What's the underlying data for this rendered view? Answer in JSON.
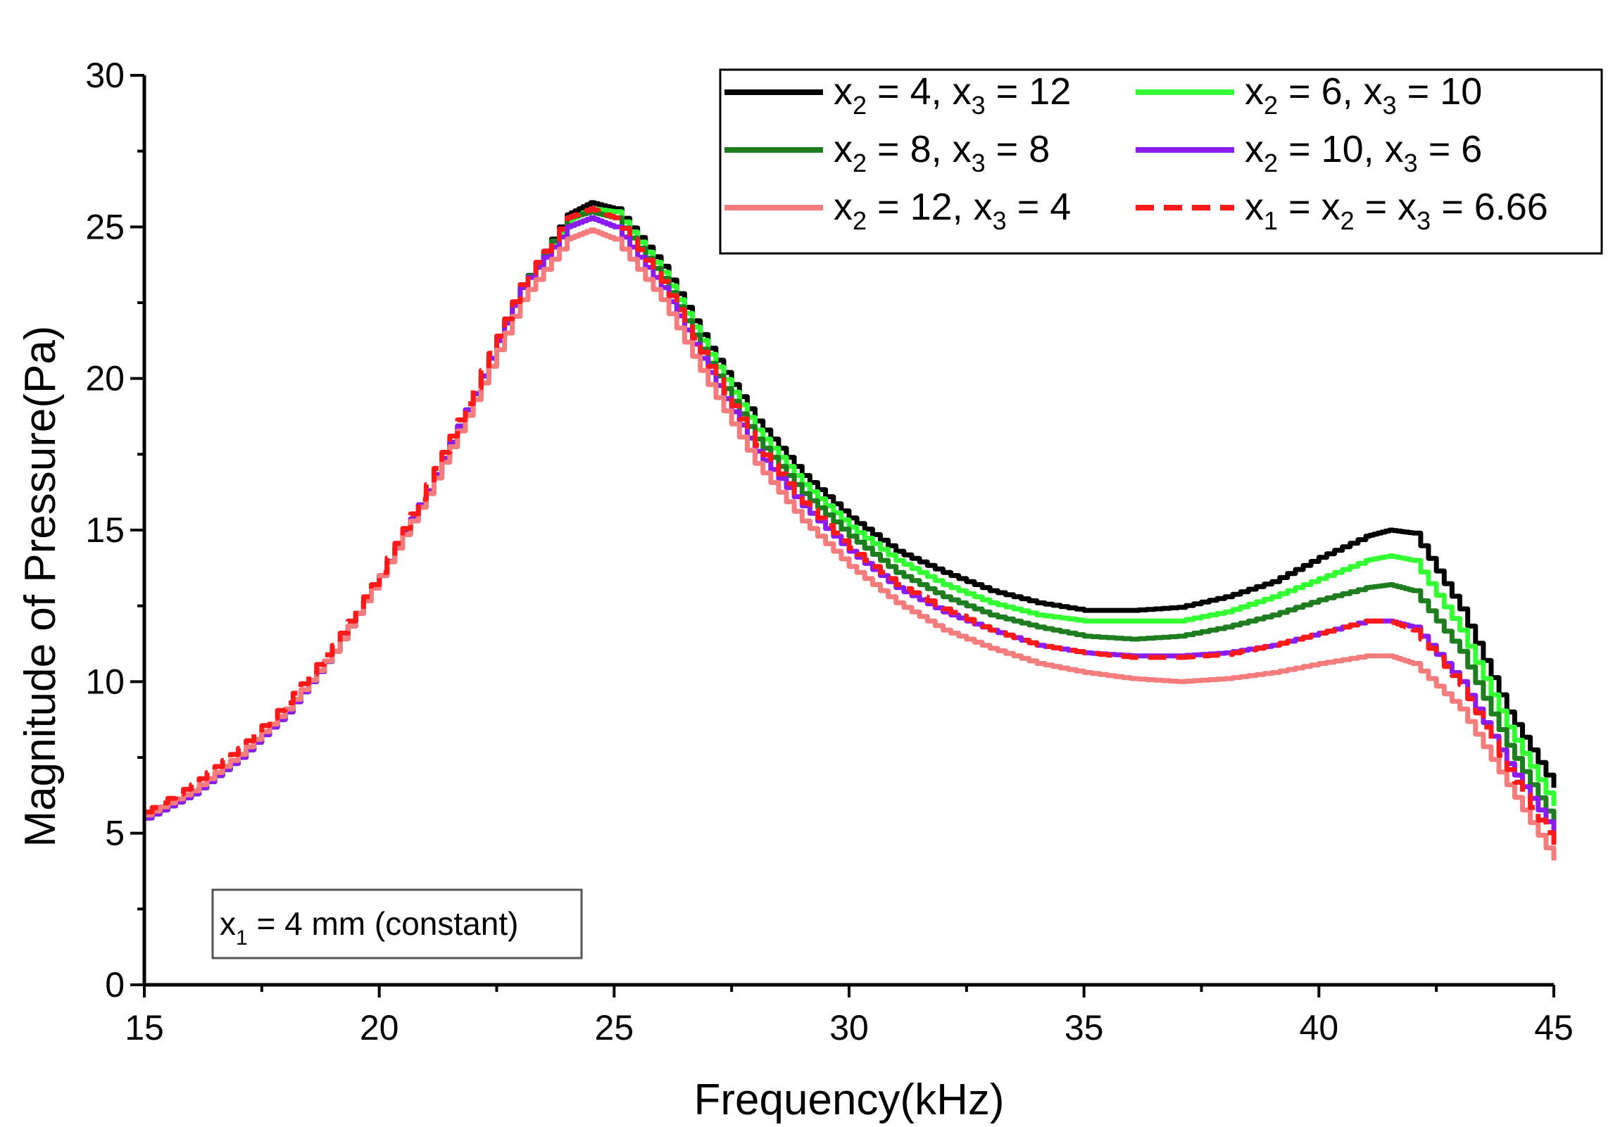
{
  "chart_data": {
    "type": "line",
    "xlabel": "Frequency(kHz)",
    "ylabel": "Magnitude of Pressure(Pa)",
    "xlim": [
      15,
      45
    ],
    "ylim": [
      0,
      30
    ],
    "xticks": [
      15,
      20,
      25,
      30,
      35,
      40,
      45
    ],
    "yticks": [
      0,
      5,
      10,
      15,
      20,
      25,
      30
    ],
    "legend_position": "top-right",
    "annotation": {
      "prefix": "x",
      "sub": "1",
      "text": " = 4 mm (constant)"
    },
    "series": [
      {
        "name": "x2 = 4, x3 = 12",
        "label": [
          {
            "t": "x"
          },
          {
            "s": "2"
          },
          {
            "t": " = 4, x"
          },
          {
            "s": "3"
          },
          {
            "t": " = 12"
          }
        ],
        "color": "#000000",
        "dashed": false,
        "x": [
          15,
          16,
          17,
          18,
          19,
          20,
          21,
          22,
          23,
          24,
          24.5,
          25,
          26,
          27,
          28,
          29,
          30,
          31,
          32,
          33,
          34,
          35,
          36,
          37,
          38,
          39,
          40,
          41,
          41.5,
          42,
          43,
          44,
          45
        ],
        "y": [
          5.5,
          6.3,
          7.5,
          9.0,
          11.0,
          13.5,
          16.3,
          19.5,
          23.0,
          25.4,
          25.8,
          25.6,
          23.7,
          21.0,
          18.6,
          16.8,
          15.4,
          14.3,
          13.6,
          13.0,
          12.6,
          12.35,
          12.35,
          12.45,
          12.8,
          13.3,
          14.1,
          14.8,
          15.0,
          14.9,
          12.4,
          9.0,
          6.5
        ]
      },
      {
        "name": "x2 = 6, x3 = 10",
        "label": [
          {
            "t": "x"
          },
          {
            "s": "2"
          },
          {
            "t": " = 6, x"
          },
          {
            "s": "3"
          },
          {
            "t": " = 10"
          }
        ],
        "color": "#33ff33",
        "dashed": false,
        "x": [
          15,
          16,
          17,
          18,
          19,
          20,
          21,
          22,
          23,
          24,
          24.5,
          25,
          26,
          27,
          28,
          29,
          30,
          31,
          32,
          33,
          34,
          35,
          36,
          37,
          38,
          39,
          40,
          41,
          41.5,
          42,
          43,
          44,
          45
        ],
        "y": [
          5.5,
          6.3,
          7.5,
          9.0,
          11.0,
          13.5,
          16.3,
          19.5,
          23.0,
          25.2,
          25.6,
          25.5,
          23.5,
          20.8,
          18.3,
          16.5,
          15.1,
          14.0,
          13.2,
          12.6,
          12.2,
          12.0,
          12.0,
          12.0,
          12.3,
          12.8,
          13.4,
          14.0,
          14.15,
          14.0,
          11.7,
          8.5,
          5.9
        ]
      },
      {
        "name": "x2 = 8, x3 = 8",
        "label": [
          {
            "t": "x"
          },
          {
            "s": "2"
          },
          {
            "t": " = 8, x"
          },
          {
            "s": "3"
          },
          {
            "t": " = 8"
          }
        ],
        "color": "#1e7d1e",
        "dashed": false,
        "x": [
          15,
          16,
          17,
          18,
          19,
          20,
          21,
          22,
          23,
          24,
          24.5,
          25,
          26,
          27,
          28,
          29,
          30,
          31,
          32,
          33,
          34,
          35,
          36,
          37,
          38,
          39,
          40,
          41,
          41.5,
          42,
          43,
          44,
          45
        ],
        "y": [
          5.5,
          6.3,
          7.5,
          9.0,
          11.0,
          13.5,
          16.3,
          19.5,
          23.0,
          25.3,
          25.5,
          25.3,
          23.3,
          20.5,
          18.0,
          16.2,
          14.8,
          13.6,
          12.8,
          12.2,
          11.8,
          11.5,
          11.4,
          11.5,
          11.8,
          12.2,
          12.7,
          13.1,
          13.2,
          13.0,
          11.0,
          7.9,
          5.3
        ]
      },
      {
        "name": "x2 = 10, x3 = 6",
        "label": [
          {
            "t": "x"
          },
          {
            "s": "2"
          },
          {
            "t": " = 10, x"
          },
          {
            "s": "3"
          },
          {
            "t": " = 6"
          }
        ],
        "color": "#8a1cf0",
        "dashed": false,
        "x": [
          15,
          16,
          17,
          18,
          19,
          20,
          21,
          22,
          23,
          24,
          24.5,
          25,
          26,
          27,
          28,
          29,
          30,
          31,
          32,
          33,
          34,
          35,
          36,
          37,
          38,
          39,
          40,
          41,
          41.5,
          42,
          43,
          44,
          45
        ],
        "y": [
          5.5,
          6.3,
          7.5,
          9.0,
          11.0,
          13.5,
          16.3,
          19.5,
          23.0,
          25.0,
          25.3,
          25.0,
          23.0,
          20.2,
          17.6,
          15.8,
          14.3,
          13.1,
          12.3,
          11.7,
          11.2,
          10.95,
          10.85,
          10.85,
          10.95,
          11.2,
          11.6,
          12.0,
          12.0,
          11.8,
          10.0,
          7.3,
          5.0
        ]
      },
      {
        "name": "x2 = 12, x3 = 4",
        "label": [
          {
            "t": "x"
          },
          {
            "s": "2"
          },
          {
            "t": " = 12, x"
          },
          {
            "s": "3"
          },
          {
            "t": " = 4"
          }
        ],
        "color": "#f47c7c",
        "dashed": false,
        "x": [
          15,
          16,
          17,
          18,
          19,
          20,
          21,
          22,
          23,
          24,
          24.5,
          25,
          26,
          27,
          28,
          29,
          30,
          31,
          32,
          33,
          34,
          35,
          36,
          37,
          38,
          39,
          40,
          41,
          41.5,
          42,
          43,
          44,
          45
        ],
        "y": [
          5.6,
          6.4,
          7.6,
          9.1,
          11.0,
          13.5,
          16.2,
          19.3,
          22.6,
          24.6,
          24.9,
          24.6,
          22.6,
          19.8,
          17.2,
          15.3,
          13.8,
          12.6,
          11.7,
          11.1,
          10.6,
          10.3,
          10.1,
          10.0,
          10.1,
          10.3,
          10.6,
          10.85,
          10.85,
          10.6,
          9.1,
          6.6,
          4.1
        ]
      },
      {
        "name": "x1 = x2 = x3 = 6.66",
        "label": [
          {
            "t": "x"
          },
          {
            "s": "1"
          },
          {
            "t": " = x"
          },
          {
            "s": "2"
          },
          {
            "t": " = x"
          },
          {
            "s": "3"
          },
          {
            "t": " = 6.66"
          }
        ],
        "color": "#ff1a1a",
        "dashed": true,
        "x": [
          15,
          16,
          17,
          18,
          19,
          20,
          21,
          22,
          23,
          24,
          24.5,
          25,
          26,
          27,
          28,
          29,
          30,
          31,
          32,
          33,
          34,
          35,
          36,
          37,
          38,
          39,
          40,
          41,
          41.5,
          42,
          43,
          44,
          45
        ],
        "y": [
          5.7,
          6.6,
          7.8,
          9.3,
          11.2,
          13.6,
          16.5,
          19.7,
          23.1,
          25.3,
          25.6,
          25.3,
          23.2,
          20.4,
          17.8,
          15.9,
          14.4,
          13.2,
          12.4,
          11.7,
          11.2,
          10.95,
          10.8,
          10.8,
          10.9,
          11.2,
          11.6,
          12.0,
          12.0,
          11.7,
          9.9,
          7.1,
          4.6
        ]
      }
    ]
  }
}
